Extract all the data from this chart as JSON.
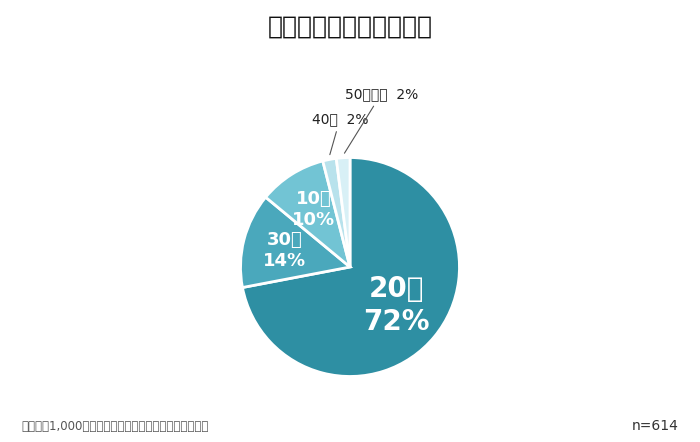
{
  "title": "職場恋愛をした年齢は？",
  "slices": [
    {
      "label": "20代",
      "pct": "72%",
      "value": 72,
      "color": "#2e8fa3"
    },
    {
      "label": "30代",
      "pct": "14%",
      "value": 14,
      "color": "#4aa8bc"
    },
    {
      "label": "10代",
      "pct": "10%",
      "value": 10,
      "color": "#72c4d4"
    },
    {
      "label": "40代",
      "pct": "2%",
      "value": 2,
      "color": "#b8e2ec"
    },
    {
      "label": "50代以上",
      "pct": "2%",
      "value": 2,
      "color": "#d8f0f6"
    }
  ],
  "footnote": "働く男兴1,000人への職場恋愛に関するアンケート調査",
  "n_label": "n=614",
  "background_color": "#ffffff",
  "title_fontsize": 18,
  "label_fontsize_20": 20,
  "label_fontsize_inner": 13,
  "label_fontsize_outer": 10
}
